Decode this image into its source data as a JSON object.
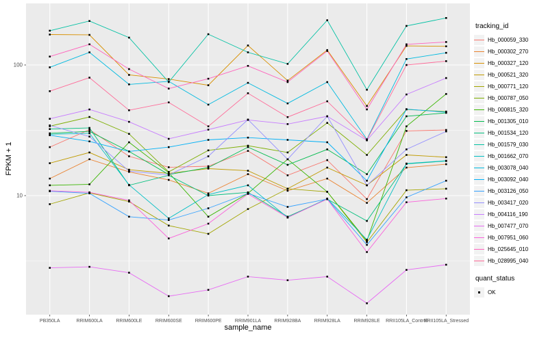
{
  "figure": {
    "xlabel": "sample_name",
    "ylabel": "FPKM + 1",
    "legend_title": "tracking_id",
    "quant_legend_title": "quant_status",
    "quant_legend_item": "OK"
  },
  "chart_data": {
    "type": "line",
    "title": "",
    "xlabel": "sample_name",
    "ylabel": "FPKM + 1",
    "yscale": "log10",
    "ylim": [
      1.25,
      290
    ],
    "yticks": [
      10,
      100
    ],
    "y_minor_ticks": [
      3.162,
      31.623
    ],
    "grid": "on",
    "panel_background": "#EBEBEB",
    "gridline_color": "#FFFFFF",
    "tick_label_color": "#4D4D4D",
    "point_shape": "filled-square",
    "point_color": "#000000",
    "legend_title": "tracking_id",
    "legend_position": "right",
    "quant_status": {
      "title": "quant_status",
      "values": [
        "OK"
      ]
    },
    "x_categories": [
      "PB350LA",
      "RRIM600LA",
      "RRIM600LE",
      "RRIM600SE",
      "RRIM600PE",
      "RRIM901LA",
      "RRIM928BA",
      "RRIM928LA",
      "RRIM928LE",
      "RRII105LA_Control",
      "RRII105LA_Stressed"
    ],
    "series": [
      {
        "name": "Hb_000059_330",
        "color": "#F8766D",
        "values": [
          23.5,
          32,
          20,
          16.5,
          16.8,
          22,
          14.3,
          18.7,
          9.4,
          31.3,
          31.8
        ]
      },
      {
        "name": "Hb_000302_270",
        "color": "#EA8331",
        "values": [
          13.5,
          19,
          15.2,
          13.2,
          10.4,
          14.6,
          10.9,
          13.5,
          8.8,
          16.4,
          17.4
        ]
      },
      {
        "name": "Hb_000327_120",
        "color": "#D89000",
        "values": [
          171,
          170,
          84,
          78,
          70,
          141,
          76,
          130,
          48.6,
          140,
          139
        ]
      },
      {
        "name": "Hb_000521_320",
        "color": "#C09B00",
        "values": [
          17.7,
          21.4,
          15.8,
          14.8,
          16.1,
          15.5,
          11.3,
          16.4,
          12,
          20.5,
          19.7
        ]
      },
      {
        "name": "Hb_000771_120",
        "color": "#A3A500",
        "values": [
          8.6,
          10.5,
          9,
          5.9,
          5.1,
          7.9,
          11.3,
          10.7,
          4.4,
          11,
          11.3
        ]
      },
      {
        "name": "Hb_000787_050",
        "color": "#7CAE00",
        "values": [
          34,
          40,
          29.7,
          15.2,
          22.2,
          24.1,
          21.4,
          36,
          20.5,
          45.7,
          44
        ]
      },
      {
        "name": "Hb_000815_320",
        "color": "#39B600",
        "values": [
          12,
          12.2,
          25.6,
          15,
          6.9,
          10.4,
          19,
          10.7,
          4.5,
          33.9,
          60
        ]
      },
      {
        "name": "Hb_001305_010",
        "color": "#00BB4E",
        "values": [
          30,
          31,
          21.8,
          14.5,
          16.4,
          23.5,
          17.2,
          22.6,
          14.6,
          40.5,
          43
        ]
      },
      {
        "name": "Hb_001534_120",
        "color": "#00BF7D",
        "values": [
          32.3,
          33,
          12,
          14.3,
          10,
          10.6,
          6.9,
          9.4,
          6.4,
          17.5,
          18.4
        ]
      },
      {
        "name": "Hb_001579_030",
        "color": "#00C1A3",
        "values": [
          183,
          217,
          162,
          74,
          172,
          125,
          102,
          220,
          64.6,
          199,
          229
        ]
      },
      {
        "name": "Hb_001662_070",
        "color": "#00BFC4",
        "values": [
          29.5,
          30,
          12.1,
          6.7,
          10.2,
          12,
          6.8,
          9.5,
          4.6,
          17.6,
          18.5
        ]
      },
      {
        "name": "Hb_003078_040",
        "color": "#00BAE0",
        "values": [
          96,
          125,
          71,
          75,
          49.7,
          73,
          50.8,
          74,
          27,
          111,
          124
        ]
      },
      {
        "name": "Hb_003092_040",
        "color": "#00B0F6",
        "values": [
          29,
          26,
          21.8,
          23.5,
          26.7,
          27.8,
          26.7,
          25.6,
          13,
          45.9,
          43.5
        ]
      },
      {
        "name": "Hb_003126_050",
        "color": "#35A2FF",
        "values": [
          10.8,
          10.4,
          6.9,
          6.5,
          8,
          10.4,
          8.2,
          9.4,
          4.2,
          9.7,
          13
        ]
      },
      {
        "name": "Hb_003417_020",
        "color": "#9590FF",
        "values": [
          34.5,
          28.3,
          15.4,
          14.4,
          20,
          38.2,
          19,
          40.5,
          12,
          22.6,
          31
        ]
      },
      {
        "name": "Hb_004116_190",
        "color": "#C77CFF",
        "values": [
          38.7,
          45.7,
          36.7,
          27.2,
          32,
          38,
          35.3,
          40.5,
          26.5,
          59.5,
          79.4
        ]
      },
      {
        "name": "Hb_007477_070",
        "color": "#E76BF3",
        "values": [
          2.8,
          2.85,
          2.57,
          1.7,
          1.9,
          2.4,
          2.25,
          2.4,
          1.5,
          2.7,
          2.96
        ]
      },
      {
        "name": "Hb_007951_060",
        "color": "#FA62DB",
        "values": [
          10.9,
          10.6,
          9.2,
          4.7,
          6.1,
          10.3,
          6.8,
          9.4,
          3.7,
          8.9,
          9.5
        ]
      },
      {
        "name": "Hb_025645_010",
        "color": "#FF62BC",
        "values": [
          116,
          144,
          93,
          66,
          78.5,
          98.5,
          74,
          128,
          45.7,
          144,
          150
        ]
      },
      {
        "name": "Hb_028995_040",
        "color": "#FF6A98",
        "values": [
          63,
          80,
          45,
          51.7,
          33.9,
          60.8,
          39.9,
          52.7,
          26.7,
          100,
          107
        ]
      }
    ]
  }
}
